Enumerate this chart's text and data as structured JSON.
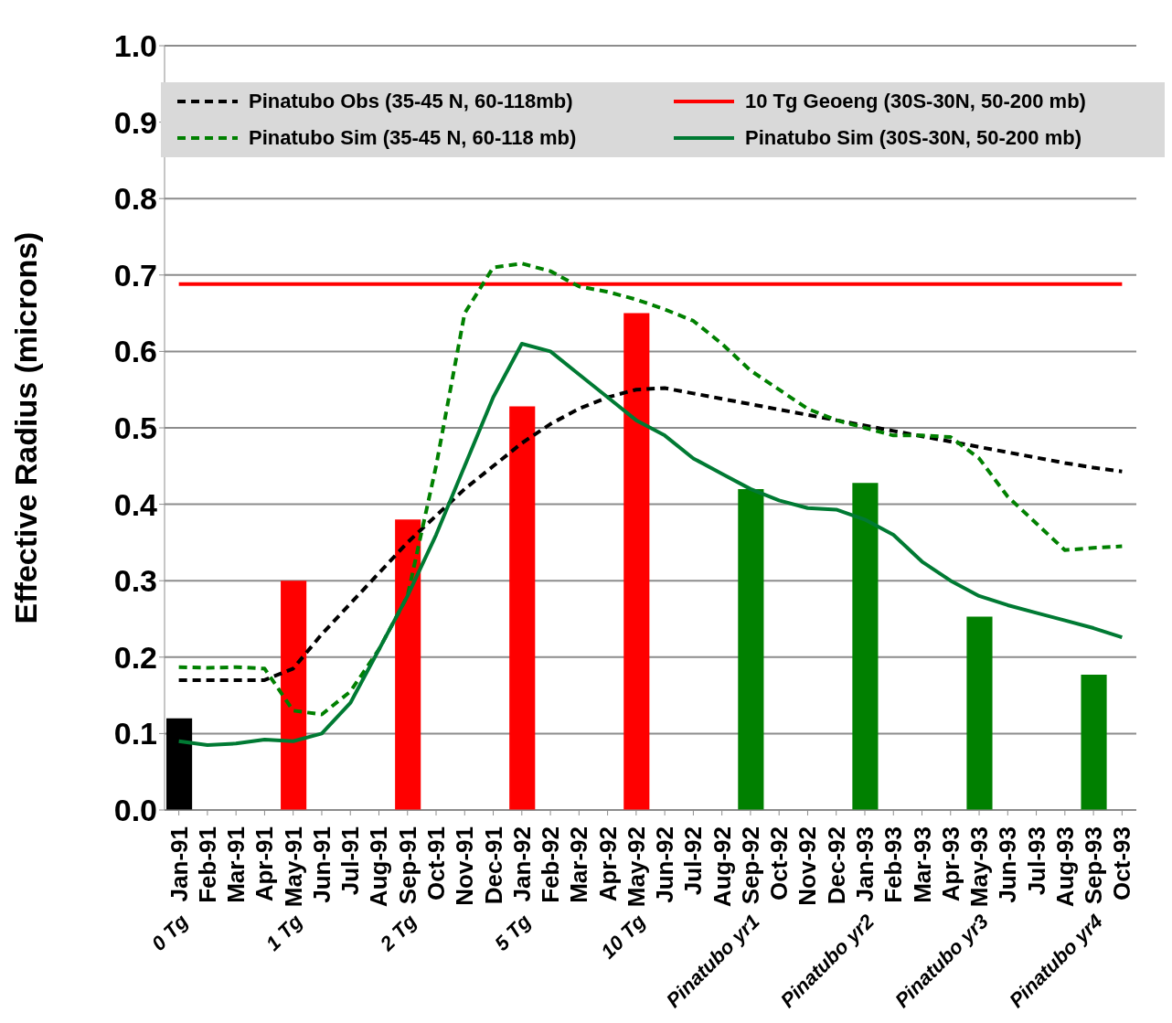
{
  "chart_data": {
    "type": "line",
    "ylabel": "Effective Radius (microns)",
    "categories": [
      "Jan-91",
      "Feb-91",
      "Mar-91",
      "Apr-91",
      "May-91",
      "Jun-91",
      "Jul-91",
      "Aug-91",
      "Sep-91",
      "Oct-91",
      "Nov-91",
      "Dec-91",
      "Jan-92",
      "Feb-92",
      "Mar-92",
      "Apr-92",
      "May-92",
      "Jun-92",
      "Jul-92",
      "Aug-92",
      "Sep-92",
      "Oct-92",
      "Nov-92",
      "Dec-92",
      "Jan-93",
      "Feb-93",
      "Mar-93",
      "Apr-93",
      "May-93",
      "Jun-93",
      "Jul-93",
      "Aug-93",
      "Sep-93",
      "Oct-93"
    ],
    "series": [
      {
        "type": "bar",
        "values": [
          0.12,
          null,
          null,
          null,
          0.3,
          null,
          null,
          null,
          0.38,
          null,
          null,
          null,
          0.528,
          null,
          null,
          null,
          0.65,
          null,
          null,
          null,
          0.42,
          null,
          null,
          null,
          0.428,
          null,
          null,
          null,
          0.253,
          null,
          null,
          null,
          0.177,
          null
        ],
        "colors": [
          "#000000",
          null,
          null,
          null,
          "#ff0000",
          null,
          null,
          null,
          "#ff0000",
          null,
          null,
          null,
          "#ff0000",
          null,
          null,
          null,
          "#ff0000",
          null,
          null,
          null,
          "#008000",
          null,
          null,
          null,
          "#008000",
          null,
          null,
          null,
          "#008000",
          null,
          null,
          null,
          "#008000",
          null
        ]
      },
      {
        "name": "Pinatubo Obs (35-45 N, 60-118mb)",
        "color": "#000000",
        "line_style": "dashed",
        "values": [
          0.17,
          0.17,
          0.17,
          0.17,
          0.185,
          0.23,
          0.27,
          0.31,
          0.35,
          0.385,
          0.42,
          0.45,
          0.48,
          0.505,
          0.525,
          0.54,
          0.55,
          0.552,
          0.545,
          0.538,
          0.531,
          0.524,
          0.517,
          0.51,
          0.503,
          0.496,
          0.489,
          0.482,
          0.475,
          0.468,
          0.461,
          0.454,
          0.448,
          0.443
        ]
      },
      {
        "name": "10 Tg Geoeng (30S-30N, 50-200 mb)",
        "color": "#ff0000",
        "line_style": "solid",
        "values": [
          0.688,
          0.688,
          0.688,
          0.688,
          0.688,
          0.688,
          0.688,
          0.688,
          0.688,
          0.688,
          0.688,
          0.688,
          0.688,
          0.688,
          0.688,
          0.688,
          0.688,
          0.688,
          0.688,
          0.688,
          0.688,
          0.688,
          0.688,
          0.688,
          0.688,
          0.688,
          0.688,
          0.688,
          0.688,
          0.688,
          0.688,
          0.688,
          0.688,
          0.688
        ]
      },
      {
        "name": "Pinatubo Sim (35-45 N, 60-118 mb)",
        "color": "#008000",
        "line_style": "dashed",
        "values": [
          0.187,
          0.186,
          0.187,
          0.185,
          0.13,
          0.125,
          0.155,
          0.21,
          0.28,
          0.45,
          0.65,
          0.71,
          0.715,
          0.705,
          0.685,
          0.678,
          0.668,
          0.655,
          0.64,
          0.61,
          0.575,
          0.55,
          0.525,
          0.51,
          0.5,
          0.49,
          0.49,
          0.488,
          0.46,
          0.41,
          0.375,
          0.34,
          0.343,
          0.345
        ]
      },
      {
        "name": "Pinatubo Sim (30S-30N, 50-200 mb)",
        "color": "#007a33",
        "line_style": "solid",
        "values": [
          0.09,
          0.085,
          0.087,
          0.092,
          0.09,
          0.1,
          0.14,
          0.21,
          0.28,
          0.36,
          0.45,
          0.54,
          0.61,
          0.6,
          0.57,
          0.54,
          0.51,
          0.49,
          0.46,
          0.44,
          0.42,
          0.405,
          0.395,
          0.393,
          0.38,
          0.36,
          0.325,
          0.3,
          0.28,
          0.268,
          0.258,
          0.248,
          0.238,
          0.226
        ]
      }
    ],
    "ylim": [
      0,
      1
    ],
    "yticks": [
      {
        "value": 0,
        "label": "0.0"
      },
      {
        "value": 0.1,
        "label": "0.1"
      },
      {
        "value": 0.2,
        "label": "0.2"
      },
      {
        "value": 0.3,
        "label": "0.3"
      },
      {
        "value": 0.4,
        "label": "0.4"
      },
      {
        "value": 0.5,
        "label": "0.5"
      },
      {
        "value": 0.6,
        "label": "0.6"
      },
      {
        "value": 0.7,
        "label": "0.7"
      },
      {
        "value": 0.8,
        "label": "0.8"
      },
      {
        "value": 0.9,
        "label": "0.9"
      },
      {
        "value": 1,
        "label": "1.0"
      }
    ],
    "grid": "y",
    "legend": "top",
    "annotations": [
      "0 Tg",
      "1 Tg",
      "2 Tg",
      "5 Tg",
      "10 Tg",
      "Pinatubo yr1",
      "Pinatubo yr2",
      "Pinatubo yr3",
      "Pinatubo yr4"
    ]
  }
}
